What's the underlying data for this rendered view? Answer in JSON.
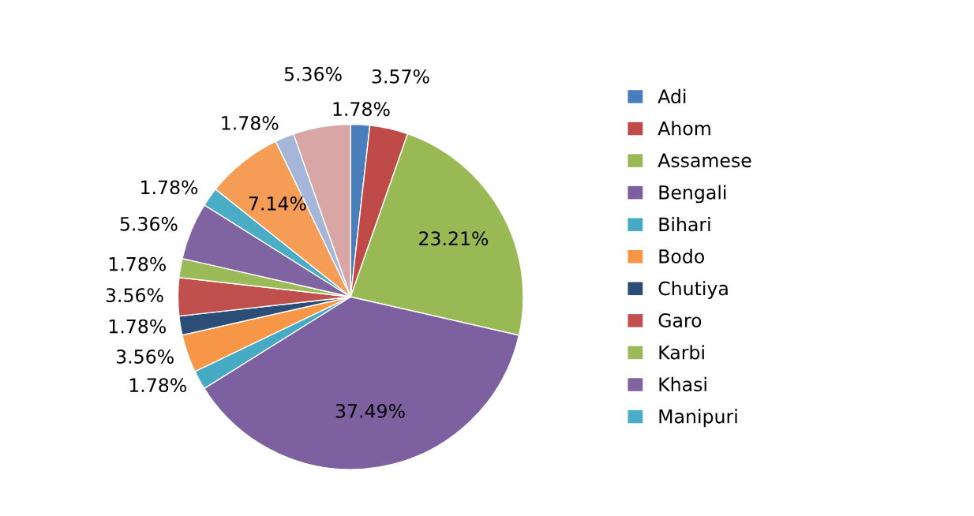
{
  "chart_data": {
    "type": "pie",
    "categories": [
      "Adi",
      "Ahom",
      "Assamese",
      "Bengali",
      "Bihari",
      "Bodo",
      "Chutiya",
      "Garo",
      "Karbi",
      "Khasi",
      "Manipuri",
      null,
      null,
      null
    ],
    "values": [
      1.78,
      3.57,
      23.21,
      37.49,
      1.78,
      3.56,
      1.78,
      3.56,
      1.78,
      5.36,
      1.78,
      7.14,
      1.78,
      5.36
    ],
    "value_labels": [
      "1.78%",
      "3.57%",
      "23.21%",
      "37.49%",
      "1.78%",
      "3.56%",
      "1.78%",
      "3.56%",
      "1.78%",
      "5.36%",
      "1.78%",
      "7.14%",
      "1.78%",
      "5.36%"
    ],
    "colors": [
      "#4a7ebb",
      "#be4b48",
      "#98b954",
      "#7d60a0",
      "#46aac5",
      "#f79646",
      "#2c4d75",
      "#c0504d",
      "#9bbb59",
      "#8064a2",
      "#4bacc6",
      "#f59d56",
      "#a5b6d8",
      "#d7a6a5"
    ],
    "legend": "right"
  }
}
